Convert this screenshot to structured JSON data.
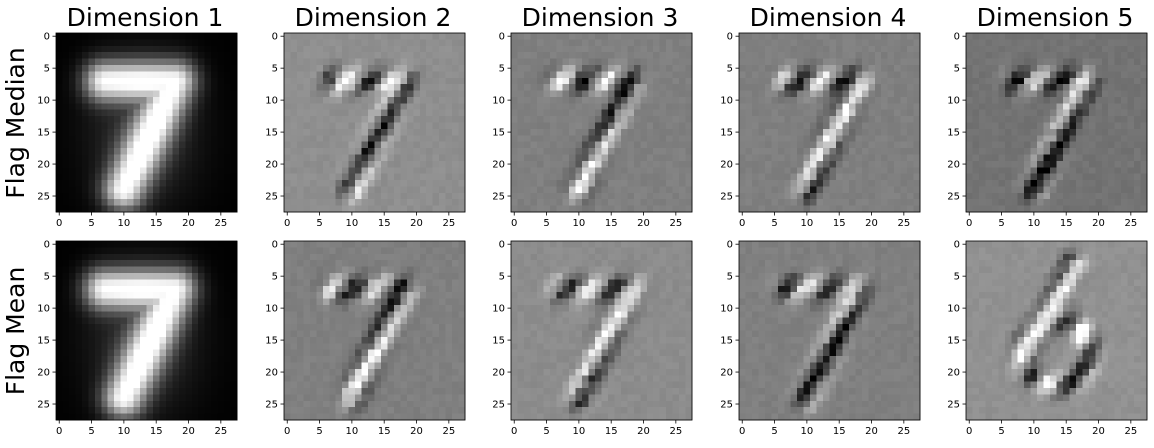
{
  "chart_data": {
    "type": "heatmap",
    "colormap": "gray",
    "column_titles": [
      "Dimension 1",
      "Dimension 2",
      "Dimension 3",
      "Dimension 4",
      "Dimension 5"
    ],
    "row_labels": [
      "Flag Median",
      "Flag Mean"
    ],
    "x_ticks": [
      "0",
      "5",
      "10",
      "15",
      "20",
      "25"
    ],
    "y_ticks": [
      "0",
      "5",
      "10",
      "15",
      "20",
      "25"
    ],
    "xlim": [
      -0.5,
      27.5
    ],
    "ylim": [
      27.5,
      -0.5
    ],
    "image_size": [
      28,
      28
    ],
    "panels": [
      {
        "row": "Flag Median",
        "column": "Dimension 1",
        "background_gray": 0.0,
        "depicts": "7"
      },
      {
        "row": "Flag Median",
        "column": "Dimension 2",
        "background_gray": 0.56,
        "depicts": "7"
      },
      {
        "row": "Flag Median",
        "column": "Dimension 3",
        "background_gray": 0.5,
        "depicts": "7"
      },
      {
        "row": "Flag Median",
        "column": "Dimension 4",
        "background_gray": 0.5,
        "depicts": "7"
      },
      {
        "row": "Flag Median",
        "column": "Dimension 5",
        "background_gray": 0.45,
        "depicts": "7"
      },
      {
        "row": "Flag Mean",
        "column": "Dimension 1",
        "background_gray": 0.0,
        "depicts": "7"
      },
      {
        "row": "Flag Mean",
        "column": "Dimension 2",
        "background_gray": 0.5,
        "depicts": "7"
      },
      {
        "row": "Flag Mean",
        "column": "Dimension 3",
        "background_gray": 0.55,
        "depicts": "7"
      },
      {
        "row": "Flag Mean",
        "column": "Dimension 4",
        "background_gray": 0.5,
        "depicts": "7"
      },
      {
        "row": "Flag Mean",
        "column": "Dimension 5",
        "background_gray": 0.57,
        "depicts": "6"
      }
    ]
  }
}
